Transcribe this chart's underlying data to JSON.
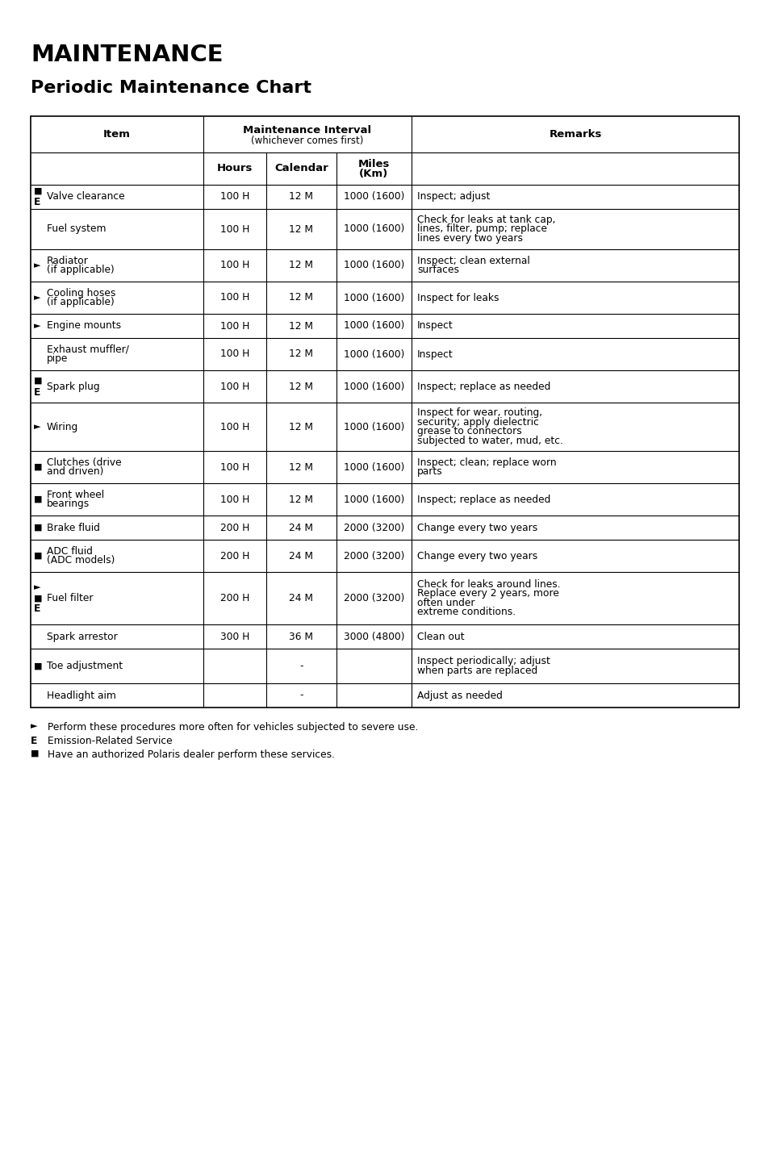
{
  "title1": "MAINTENANCE",
  "title2": "Periodic Maintenance Chart",
  "rows": [
    {
      "symbols": [
        "■",
        "E"
      ],
      "item": [
        "Valve clearance"
      ],
      "hours": "100 H",
      "calendar": "12 M",
      "miles": "1000 (1600)",
      "remarks": [
        "Inspect; adjust"
      ]
    },
    {
      "symbols": [],
      "item": [
        "Fuel system"
      ],
      "hours": "100 H",
      "calendar": "12 M",
      "miles": "1000 (1600)",
      "remarks": [
        "Check for leaks at tank cap,",
        "lines, filter, pump; replace",
        "lines every two years"
      ]
    },
    {
      "symbols": [
        "►"
      ],
      "item": [
        "Radiator",
        "(if applicable)"
      ],
      "hours": "100 H",
      "calendar": "12 M",
      "miles": "1000 (1600)",
      "remarks": [
        "Inspect; clean external",
        "surfaces"
      ]
    },
    {
      "symbols": [
        "►"
      ],
      "item": [
        "Cooling hoses",
        "(if applicable)"
      ],
      "hours": "100 H",
      "calendar": "12 M",
      "miles": "1000 (1600)",
      "remarks": [
        "Inspect for leaks"
      ]
    },
    {
      "symbols": [
        "►"
      ],
      "item": [
        "Engine mounts"
      ],
      "hours": "100 H",
      "calendar": "12 M",
      "miles": "1000 (1600)",
      "remarks": [
        "Inspect"
      ]
    },
    {
      "symbols": [],
      "item": [
        "Exhaust muffler/",
        "pipe"
      ],
      "hours": "100 H",
      "calendar": "12 M",
      "miles": "1000 (1600)",
      "remarks": [
        "Inspect"
      ]
    },
    {
      "symbols": [
        "■",
        "E"
      ],
      "item": [
        "Spark plug"
      ],
      "hours": "100 H",
      "calendar": "12 M",
      "miles": "1000 (1600)",
      "remarks": [
        "Inspect; replace as needed"
      ]
    },
    {
      "symbols": [
        "►"
      ],
      "item": [
        "Wiring"
      ],
      "hours": "100 H",
      "calendar": "12 M",
      "miles": "1000 (1600)",
      "remarks": [
        "Inspect for wear, routing,",
        "security; apply dielectric",
        "grease to connectors",
        "subjected to water, mud, etc."
      ]
    },
    {
      "symbols": [
        "■"
      ],
      "item": [
        "Clutches (drive",
        "and driven)"
      ],
      "hours": "100 H",
      "calendar": "12 M",
      "miles": "1000 (1600)",
      "remarks": [
        "Inspect; clean; replace worn",
        "parts"
      ]
    },
    {
      "symbols": [
        "■"
      ],
      "item": [
        "Front wheel",
        "bearings"
      ],
      "hours": "100 H",
      "calendar": "12 M",
      "miles": "1000 (1600)",
      "remarks": [
        "Inspect; replace as needed"
      ]
    },
    {
      "symbols": [
        "■"
      ],
      "item": [
        "Brake fluid"
      ],
      "hours": "200 H",
      "calendar": "24 M",
      "miles": "2000 (3200)",
      "remarks": [
        "Change every two years"
      ]
    },
    {
      "symbols": [
        "■"
      ],
      "item": [
        "ADC fluid",
        "(ADC models)"
      ],
      "hours": "200 H",
      "calendar": "24 M",
      "miles": "2000 (3200)",
      "remarks": [
        "Change every two years"
      ]
    },
    {
      "symbols": [
        "►",
        "■",
        "E"
      ],
      "item": [
        "Fuel filter"
      ],
      "hours": "200 H",
      "calendar": "24 M",
      "miles": "2000 (3200)",
      "remarks": [
        "Check for leaks around lines.",
        "Replace every 2 years, more",
        "often under",
        "extreme conditions."
      ]
    },
    {
      "symbols": [],
      "item": [
        "Spark arrestor"
      ],
      "hours": "300 H",
      "calendar": "36 M",
      "miles": "3000 (4800)",
      "remarks": [
        "Clean out"
      ]
    },
    {
      "symbols": [
        "■"
      ],
      "item": [
        "Toe adjustment"
      ],
      "hours": "",
      "calendar": "-",
      "miles": "",
      "remarks": [
        "Inspect periodically; adjust",
        "when parts are replaced"
      ]
    },
    {
      "symbols": [],
      "item": [
        "Headlight aim"
      ],
      "hours": "",
      "calendar": "-",
      "miles": "",
      "remarks": [
        "Adjust as needed"
      ]
    }
  ],
  "footnotes": [
    [
      "►",
      " Perform these procedures more often for vehicles subjected to severe use."
    ],
    [
      "E",
      " Emission-Related Service"
    ],
    [
      "■",
      " Have an authorized Polaris dealer perform these services."
    ]
  ]
}
